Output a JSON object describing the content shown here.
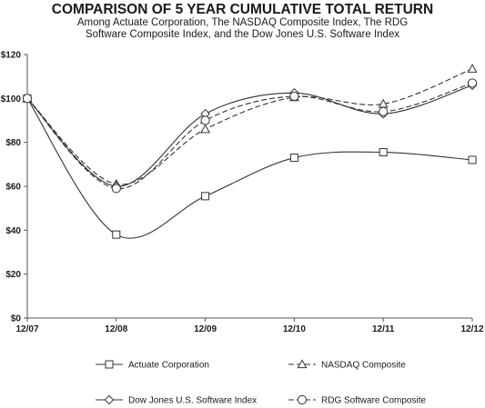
{
  "chart_data": {
    "type": "line",
    "title": "COMPARISON OF 5 YEAR CUMULATIVE TOTAL RETURN",
    "subtitle": [
      "Among Actuate Corporation, The NASDAQ Composite Index, The RDG",
      "Software Composite Index, and the Dow Jones U.S. Software Index"
    ],
    "categories": [
      "12/07",
      "12/08",
      "12/09",
      "12/10",
      "12/11",
      "12/12"
    ],
    "yticks": [
      "$0",
      "$20",
      "$40",
      "$60",
      "$80",
      "$100",
      "$120"
    ],
    "ylim": [
      0,
      120
    ],
    "grid": false,
    "legend_position": "bottom",
    "series": [
      {
        "name": "Actuate Corporation",
        "values": [
          100,
          38,
          55.5,
          73,
          75.5,
          72
        ],
        "marker": "square",
        "dash": "solid"
      },
      {
        "name": "NASDAQ Composite",
        "values": [
          100,
          61,
          86,
          100.5,
          97.5,
          113.5
        ],
        "marker": "triangle",
        "dash": "dashed"
      },
      {
        "name": "Dow Jones U.S. Software Index",
        "values": [
          100,
          60,
          93,
          102.5,
          93,
          106
        ],
        "marker": "diamond",
        "dash": "solid"
      },
      {
        "name": "RDG Software Composite",
        "values": [
          100,
          59,
          90,
          101,
          94,
          107
        ],
        "marker": "circle",
        "dash": "dashed"
      }
    ]
  }
}
